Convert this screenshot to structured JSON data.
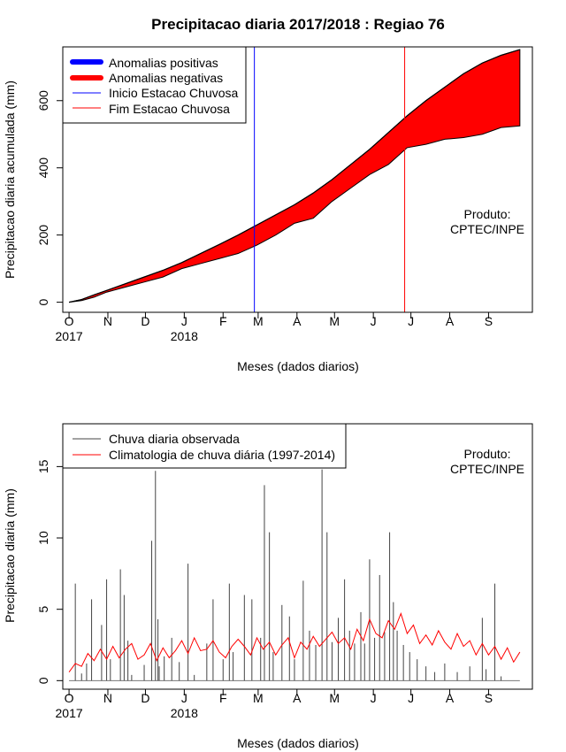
{
  "colors": {
    "negative": "#ff0000",
    "positive": "#0000ff",
    "start_line": "#0000ff",
    "end_line": "#ff0000",
    "observed": "#444444",
    "climatology": "#ff0000"
  },
  "chart_data": [
    {
      "type": "area",
      "title": "Precipitacao diaria 2017/2018 : Regiao 76",
      "xlabel": "Meses (dados diarios)",
      "ylabel": "Precipitacao diaria acumulada (mm)",
      "ylim": [
        -30,
        760
      ],
      "yticks": [
        0,
        200,
        400,
        600
      ],
      "xlim": [
        -5,
        370
      ],
      "month_ticks": [
        {
          "label": "O",
          "day": 0
        },
        {
          "label": "N",
          "day": 31
        },
        {
          "label": "D",
          "day": 61
        },
        {
          "label": "J",
          "day": 92
        },
        {
          "label": "F",
          "day": 123
        },
        {
          "label": "M",
          "day": 151
        },
        {
          "label": "A",
          "day": 182
        },
        {
          "label": "M",
          "day": 212
        },
        {
          "label": "J",
          "day": 243
        },
        {
          "label": "J",
          "day": 273
        },
        {
          "label": "A",
          "day": 304
        },
        {
          "label": "S",
          "day": 335
        }
      ],
      "year_labels": [
        {
          "label": "2017",
          "day": 0
        },
        {
          "label": "2018",
          "day": 92
        }
      ],
      "legend": [
        {
          "label": "Anomalias positivas",
          "style": "thick",
          "color": "#0000ff"
        },
        {
          "label": "Anomalias negativas",
          "style": "thick",
          "color": "#ff0000"
        },
        {
          "label": "Inicio Estacao Chuvosa",
          "style": "thin",
          "color": "#0000ff"
        },
        {
          "label": "Fim Estacao Chuvosa",
          "style": "thin",
          "color": "#ff0000"
        }
      ],
      "annotation": [
        "Produto:",
        "CPTEC/INPE"
      ],
      "rainy_season_start_day": 148,
      "rainy_season_end_day": 268,
      "series": [
        {
          "name": "Climatologia acumulada",
          "x": [
            0,
            10,
            20,
            30,
            45,
            60,
            75,
            90,
            105,
            120,
            135,
            150,
            165,
            180,
            195,
            210,
            225,
            240,
            255,
            270,
            285,
            300,
            315,
            330,
            345,
            360
          ],
          "values": [
            0,
            8,
            22,
            35,
            55,
            75,
            95,
            118,
            145,
            172,
            200,
            230,
            260,
            290,
            325,
            365,
            410,
            455,
            505,
            555,
            600,
            640,
            680,
            712,
            735,
            752
          ]
        },
        {
          "name": "Observado acumulado",
          "x": [
            0,
            10,
            20,
            30,
            45,
            60,
            75,
            90,
            105,
            120,
            135,
            150,
            165,
            180,
            195,
            210,
            225,
            240,
            255,
            270,
            285,
            300,
            315,
            330,
            345,
            360
          ],
          "values": [
            0,
            5,
            15,
            30,
            45,
            60,
            75,
            100,
            115,
            130,
            145,
            170,
            200,
            235,
            250,
            300,
            340,
            380,
            410,
            460,
            470,
            485,
            490,
            500,
            520,
            525
          ]
        }
      ]
    },
    {
      "type": "line",
      "title": "",
      "xlabel": "Meses (dados diarios)",
      "ylabel": "Precipitacao diaria (mm)",
      "ylim": [
        -0.6,
        18
      ],
      "yticks": [
        0,
        5,
        10,
        15
      ],
      "xlim": [
        -5,
        370
      ],
      "month_ticks": [
        {
          "label": "O",
          "day": 0
        },
        {
          "label": "N",
          "day": 31
        },
        {
          "label": "D",
          "day": 61
        },
        {
          "label": "J",
          "day": 92
        },
        {
          "label": "F",
          "day": 123
        },
        {
          "label": "M",
          "day": 151
        },
        {
          "label": "A",
          "day": 182
        },
        {
          "label": "M",
          "day": 212
        },
        {
          "label": "J",
          "day": 243
        },
        {
          "label": "J",
          "day": 273
        },
        {
          "label": "A",
          "day": 304
        },
        {
          "label": "S",
          "day": 335
        }
      ],
      "year_labels": [
        {
          "label": "2017",
          "day": 0
        },
        {
          "label": "2018",
          "day": 92
        }
      ],
      "legend": [
        {
          "label": "Chuva diaria observada",
          "style": "thin",
          "color": "#444444"
        },
        {
          "label": "Climatologia de chuva diária (1997-2014)",
          "style": "thin",
          "color": "#ff0000"
        }
      ],
      "annotation": [
        "Produto:",
        "CPTEC/INPE"
      ],
      "series": [
        {
          "name": "Chuva diaria observada",
          "type": "bar",
          "x": [
            5,
            10,
            14,
            18,
            26,
            30,
            33,
            41,
            44,
            47,
            50,
            60,
            66,
            69,
            71,
            72,
            76,
            82,
            88,
            95,
            100,
            110,
            115,
            123,
            128,
            131,
            140,
            146,
            153,
            156,
            160,
            163,
            170,
            176,
            180,
            187,
            192,
            197,
            202,
            206,
            210,
            215,
            220,
            224,
            228,
            233,
            236,
            240,
            244,
            248,
            252,
            256,
            259,
            262,
            267,
            272,
            278,
            285,
            292,
            300,
            310,
            320,
            330,
            333,
            340,
            345
          ],
          "values": [
            6.8,
            0.5,
            1.2,
            5.7,
            3.9,
            7.1,
            1.5,
            7.8,
            6.0,
            2.8,
            0.4,
            1.1,
            9.8,
            14.7,
            4.3,
            1.0,
            1.7,
            3.0,
            1.3,
            8.2,
            0.4,
            2.6,
            5.7,
            1.5,
            6.8,
            2.0,
            6.0,
            5.7,
            3.0,
            13.7,
            10.4,
            2.0,
            5.3,
            4.5,
            1.5,
            7.0,
            3.5,
            2.5,
            14.8,
            10.4,
            2.7,
            4.4,
            7.1,
            3.5,
            2.6,
            4.8,
            2.6,
            8.5,
            3.0,
            7.4,
            3.4,
            10.4,
            5.5,
            3.5,
            2.5,
            2.0,
            1.5,
            1.0,
            0.6,
            1.2,
            0.6,
            1.0,
            4.4,
            0.8,
            6.8,
            0.3
          ]
        },
        {
          "name": "Climatologia de chuva diária (1997-2014)",
          "type": "line",
          "x": [
            0,
            5,
            10,
            15,
            20,
            25,
            30,
            35,
            40,
            45,
            50,
            55,
            60,
            65,
            70,
            75,
            80,
            85,
            90,
            95,
            100,
            105,
            110,
            115,
            120,
            125,
            130,
            135,
            140,
            145,
            150,
            155,
            160,
            165,
            170,
            175,
            180,
            185,
            190,
            195,
            200,
            205,
            210,
            215,
            220,
            225,
            230,
            235,
            240,
            245,
            250,
            255,
            260,
            265,
            270,
            275,
            280,
            285,
            290,
            295,
            300,
            305,
            310,
            315,
            320,
            325,
            330,
            335,
            340,
            345,
            350,
            355,
            360
          ],
          "values": [
            0.6,
            1.2,
            1.0,
            1.9,
            1.4,
            2.2,
            1.5,
            2.4,
            1.6,
            2.2,
            2.6,
            1.5,
            1.8,
            2.6,
            1.4,
            2.3,
            1.6,
            2.1,
            2.8,
            1.9,
            3.0,
            2.1,
            2.2,
            2.8,
            2.0,
            1.6,
            2.4,
            2.9,
            2.4,
            1.8,
            3.0,
            2.2,
            2.7,
            1.8,
            2.5,
            3.0,
            1.6,
            2.7,
            2.2,
            3.1,
            2.4,
            2.9,
            3.4,
            2.6,
            3.0,
            2.2,
            3.6,
            2.8,
            4.3,
            3.3,
            3.0,
            4.2,
            3.6,
            4.7,
            3.3,
            3.9,
            2.6,
            3.2,
            2.5,
            3.5,
            2.7,
            2.2,
            3.3,
            2.4,
            2.8,
            1.8,
            2.6,
            1.8,
            2.4,
            1.5,
            2.3,
            1.3,
            2.0
          ]
        }
      ]
    }
  ]
}
